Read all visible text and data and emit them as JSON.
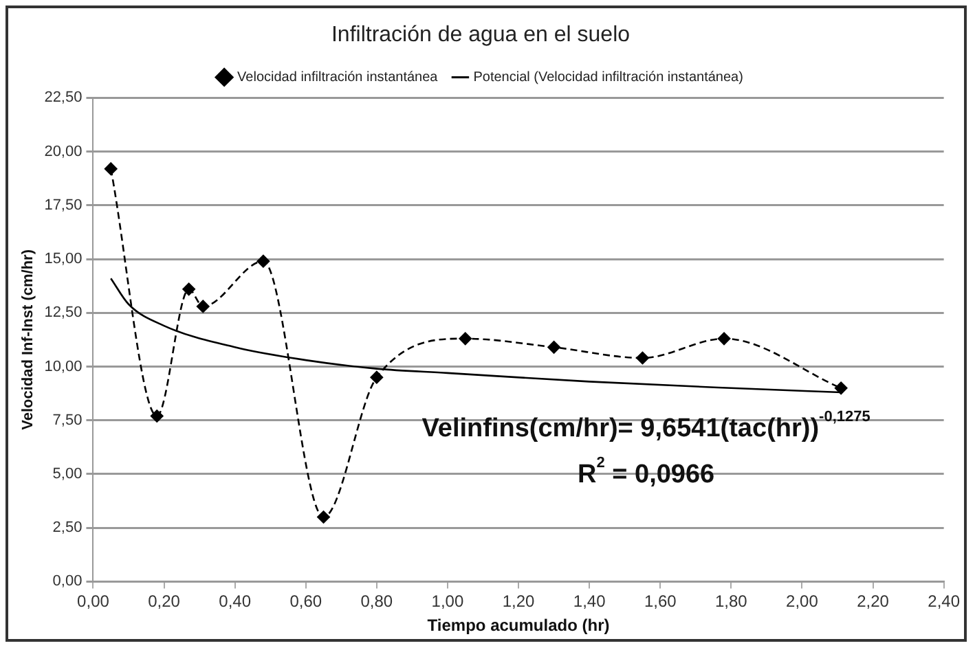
{
  "chart_data": {
    "type": "line",
    "title": "Infiltración de agua en el suelo",
    "xlabel": "Tiempo acumulado (hr)",
    "ylabel": "Velocidad Inf-Inst (cm/hr)",
    "legend": "top",
    "grid": "y",
    "xlim": [
      0,
      2.4
    ],
    "ylim": [
      0,
      22.5
    ],
    "xticks": [
      {
        "value": 0,
        "label": "0,00"
      },
      {
        "value": 0.2,
        "label": "0,20"
      },
      {
        "value": 0.4,
        "label": "0,40"
      },
      {
        "value": 0.6,
        "label": "0,60"
      },
      {
        "value": 0.8,
        "label": "0,80"
      },
      {
        "value": 1,
        "label": "1,00"
      },
      {
        "value": 1.2,
        "label": "1,20"
      },
      {
        "value": 1.4,
        "label": "1,40"
      },
      {
        "value": 1.6,
        "label": "1,60"
      },
      {
        "value": 1.8,
        "label": "1,80"
      },
      {
        "value": 2,
        "label": "2,00"
      },
      {
        "value": 2.2,
        "label": "2,20"
      },
      {
        "value": 2.4,
        "label": "2,40"
      }
    ],
    "yticks": [
      {
        "value": 0,
        "label": "0,00"
      },
      {
        "value": 2.5,
        "label": "2,50"
      },
      {
        "value": 5,
        "label": "5,00"
      },
      {
        "value": 7.5,
        "label": "7,50"
      },
      {
        "value": 10,
        "label": "10,00"
      },
      {
        "value": 12.5,
        "label": "12,50"
      },
      {
        "value": 15,
        "label": "15,00"
      },
      {
        "value": 17.5,
        "label": "17,50"
      },
      {
        "value": 20,
        "label": "20,00"
      },
      {
        "value": 22.5,
        "label": "22,50"
      }
    ],
    "series": [
      {
        "name": "Velocidad infiltración instantánea",
        "color": "#000000",
        "marker": "diamond",
        "line_style": "dashed",
        "x": [
          0.05,
          0.18,
          0.27,
          0.31,
          0.48,
          0.65,
          0.8,
          1.05,
          1.3,
          1.55,
          1.78,
          2.11
        ],
        "values": [
          19.2,
          7.7,
          13.6,
          12.8,
          14.9,
          3.0,
          9.5,
          11.3,
          10.9,
          10.4,
          11.3,
          9.0
        ]
      },
      {
        "name": "Potencial (Velocidad infiltración instantánea)",
        "color": "#000000",
        "marker": "none",
        "line_style": "solid",
        "x": [
          0.05,
          0.1,
          0.2,
          0.4,
          0.6,
          0.8,
          1.0,
          1.4,
          1.8,
          2.11
        ],
        "values": [
          14.1,
          12.9,
          11.9,
          10.9,
          10.3,
          9.9,
          9.7,
          9.3,
          9.0,
          8.8
        ]
      }
    ],
    "annotations": [
      "Velinfins(cm/hr)= 9,6541(tac(hr))$^{-0,1275}$",
      "R$^{2}$ = 0,0966"
    ]
  }
}
